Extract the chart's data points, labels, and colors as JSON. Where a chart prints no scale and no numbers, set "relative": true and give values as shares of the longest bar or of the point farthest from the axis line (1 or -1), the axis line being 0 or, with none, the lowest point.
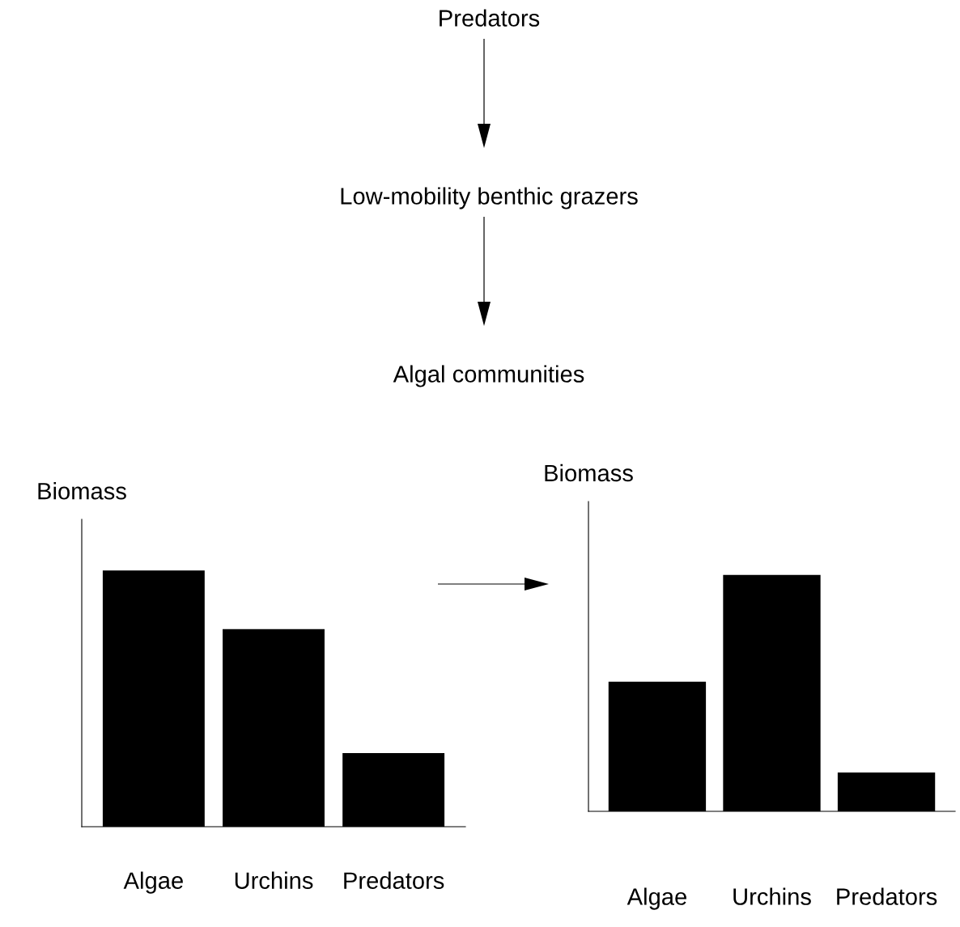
{
  "chart_data": [
    {
      "type": "bar",
      "relative": true,
      "ylabel": "Biomass",
      "categories": [
        "Algae",
        "Urchins",
        "Predators"
      ],
      "color": "#000000",
      "values": [
        1,
        0.771,
        0.287
      ],
      "annotations": [
        "Predators",
        "Low-mobility benthic grazers",
        "Algal communities"
      ]
    },
    {
      "type": "bar",
      "relative": true,
      "ylabel": "Biomass",
      "categories": [
        "Algae",
        "Urchins",
        "Predators"
      ],
      "color": "#000000",
      "values": [
        0.548,
        1,
        0.164
      ]
    }
  ]
}
